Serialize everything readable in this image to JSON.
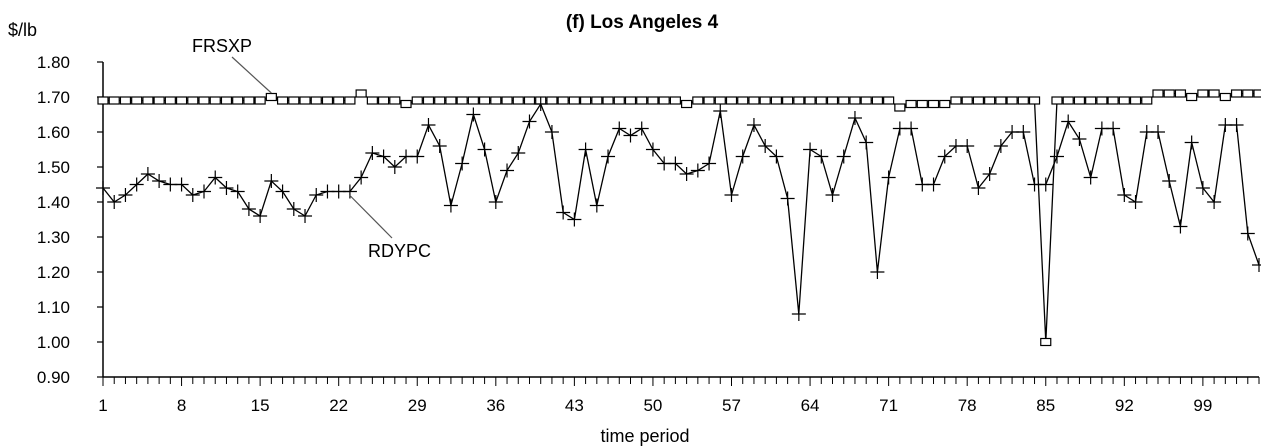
{
  "chart_data": {
    "type": "line",
    "title": "(f) Los Angeles 4",
    "xlabel": "time period",
    "ylabel": "$/lb",
    "x": [
      1,
      2,
      3,
      4,
      5,
      6,
      7,
      8,
      9,
      10,
      11,
      12,
      13,
      14,
      15,
      16,
      17,
      18,
      19,
      20,
      21,
      22,
      23,
      24,
      25,
      26,
      27,
      28,
      29,
      30,
      31,
      32,
      33,
      34,
      35,
      36,
      37,
      38,
      39,
      40,
      41,
      42,
      43,
      44,
      45,
      46,
      47,
      48,
      49,
      50,
      51,
      52,
      53,
      54,
      55,
      56,
      57,
      58,
      59,
      60,
      61,
      62,
      63,
      64,
      65,
      66,
      67,
      68,
      69,
      70,
      71,
      72,
      73,
      74,
      75,
      76,
      77,
      78,
      79,
      80,
      81,
      82,
      83,
      84,
      85,
      86,
      87,
      88,
      89,
      90,
      91,
      92,
      93,
      94,
      95,
      96,
      97,
      98,
      99,
      100,
      101,
      102,
      103,
      104
    ],
    "xticks": [
      1,
      8,
      15,
      22,
      29,
      36,
      43,
      50,
      57,
      64,
      71,
      78,
      85,
      92,
      99
    ],
    "xlim": [
      1,
      104
    ],
    "ylim": [
      0.9,
      1.8
    ],
    "yticks": [
      "0.90",
      "1.00",
      "1.10",
      "1.20",
      "1.30",
      "1.40",
      "1.50",
      "1.60",
      "1.70",
      "1.80"
    ],
    "grid": false,
    "series": [
      {
        "name": "FRSXP",
        "marker": "square",
        "values": [
          1.69,
          1.69,
          1.69,
          1.69,
          1.69,
          1.69,
          1.69,
          1.69,
          1.69,
          1.69,
          1.69,
          1.69,
          1.69,
          1.69,
          1.69,
          1.7,
          1.69,
          1.69,
          1.69,
          1.69,
          1.69,
          1.69,
          1.69,
          1.71,
          1.69,
          1.69,
          1.69,
          1.68,
          1.69,
          1.69,
          1.69,
          1.69,
          1.69,
          1.69,
          1.69,
          1.69,
          1.69,
          1.69,
          1.69,
          1.69,
          1.69,
          1.69,
          1.69,
          1.69,
          1.69,
          1.69,
          1.69,
          1.69,
          1.69,
          1.69,
          1.69,
          1.69,
          1.68,
          1.69,
          1.69,
          1.69,
          1.69,
          1.69,
          1.69,
          1.69,
          1.69,
          1.69,
          1.69,
          1.69,
          1.69,
          1.69,
          1.69,
          1.69,
          1.69,
          1.69,
          1.69,
          1.67,
          1.68,
          1.68,
          1.68,
          1.68,
          1.69,
          1.69,
          1.69,
          1.69,
          1.69,
          1.69,
          1.69,
          1.69,
          1.0,
          1.69,
          1.69,
          1.69,
          1.69,
          1.69,
          1.69,
          1.69,
          1.69,
          1.69,
          1.71,
          1.71,
          1.71,
          1.7,
          1.71,
          1.71,
          1.7,
          1.71,
          1.71,
          1.71
        ]
      },
      {
        "name": "RDYPC",
        "marker": "plus",
        "values": [
          1.44,
          1.4,
          1.42,
          1.45,
          1.48,
          1.46,
          1.45,
          1.45,
          1.42,
          1.43,
          1.47,
          1.44,
          1.43,
          1.38,
          1.36,
          1.46,
          1.43,
          1.38,
          1.36,
          1.42,
          1.43,
          1.43,
          1.43,
          1.47,
          1.54,
          1.53,
          1.5,
          1.53,
          1.53,
          1.62,
          1.56,
          1.39,
          1.51,
          1.65,
          1.55,
          1.4,
          1.49,
          1.54,
          1.63,
          1.68,
          1.6,
          1.37,
          1.35,
          1.55,
          1.39,
          1.53,
          1.61,
          1.59,
          1.61,
          1.55,
          1.51,
          1.51,
          1.48,
          1.49,
          1.51,
          1.66,
          1.42,
          1.53,
          1.62,
          1.56,
          1.53,
          1.41,
          1.08,
          1.55,
          1.53,
          1.42,
          1.53,
          1.64,
          1.57,
          1.2,
          1.47,
          1.61,
          1.61,
          1.45,
          1.45,
          1.53,
          1.56,
          1.56,
          1.44,
          1.48,
          1.56,
          1.6,
          1.6,
          1.45,
          1.45,
          1.53,
          1.63,
          1.58,
          1.47,
          1.61,
          1.61,
          1.42,
          1.4,
          1.6,
          1.6,
          1.46,
          1.33,
          1.57,
          1.44,
          1.4,
          1.62,
          1.62,
          1.31,
          1.22
        ]
      }
    ],
    "annotations": [
      {
        "text": "FRSXP",
        "points_to_series": "FRSXP",
        "at_x": 16
      },
      {
        "text": "RDYPC",
        "points_to_series": "RDYPC",
        "at_x": 23
      }
    ]
  }
}
